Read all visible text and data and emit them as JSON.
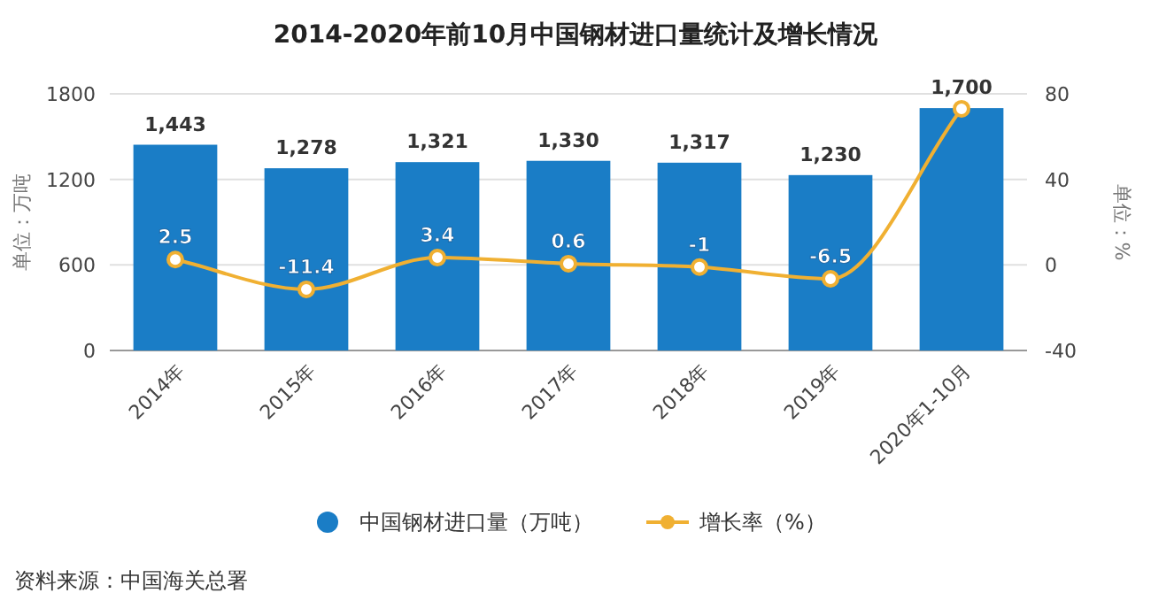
{
  "chart_data": {
    "type": "bar",
    "title": "2014-2020年前10月中国钢材进口量统计及增长情况",
    "categories": [
      "2014年",
      "2015年",
      "2016年",
      "2017年",
      "2018年",
      "2019年",
      "2020年1-10月"
    ],
    "series": [
      {
        "name": "中国钢材进口量（万吨）",
        "color": "#1a7dc6",
        "values": [
          1443,
          1278,
          1321,
          1330,
          1317,
          1230,
          1700
        ],
        "value_labels": [
          "1,443",
          "1,278",
          "1,321",
          "1,330",
          "1,317",
          "1,230",
          "1,700"
        ]
      },
      {
        "name": "增长率（%）",
        "type": "line",
        "axis": "y2",
        "color": "#f0b032",
        "marker": "circle",
        "values": [
          2.5,
          -11.4,
          3.4,
          0.6,
          -1,
          -6.5,
          73
        ],
        "value_labels": [
          "2.5",
          "-11.4",
          "3.4",
          "0.6",
          "-1",
          "-6.5",
          null
        ]
      }
    ],
    "ylabel": "单位：万吨",
    "y2label": "单位：%",
    "ylim": [
      0,
      1800
    ],
    "yticks": [
      0,
      600,
      1200,
      1800
    ],
    "y2lim": [
      -40,
      80
    ],
    "y2ticks": [
      -40,
      0,
      40,
      80
    ],
    "grid": "y",
    "legend": "bottom",
    "annotations": [
      "资料来源：中国海关总署"
    ]
  }
}
